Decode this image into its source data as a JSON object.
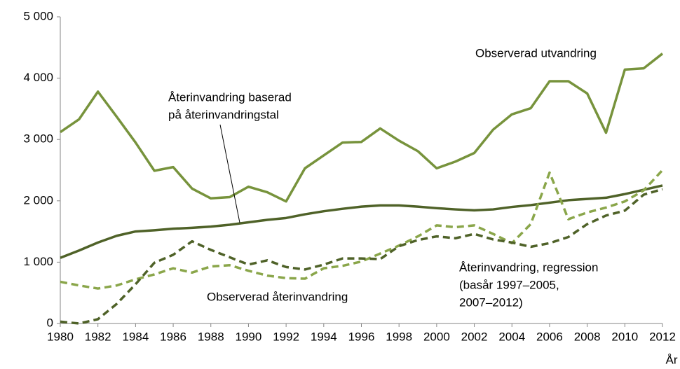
{
  "chart_data": {
    "type": "line",
    "x_label": "År",
    "x": [
      1980,
      1981,
      1982,
      1983,
      1984,
      1985,
      1986,
      1987,
      1988,
      1989,
      1990,
      1991,
      1992,
      1993,
      1994,
      1995,
      1996,
      1997,
      1998,
      1999,
      2000,
      2001,
      2002,
      2003,
      2004,
      2005,
      2006,
      2007,
      2008,
      2009,
      2010,
      2011,
      2012
    ],
    "xlim": [
      1980,
      2012
    ],
    "xticks": [
      1980,
      1982,
      1984,
      1986,
      1988,
      1990,
      1992,
      1994,
      1996,
      1998,
      2000,
      2002,
      2004,
      2006,
      2008,
      2010,
      2012
    ],
    "ylim": [
      0,
      5000
    ],
    "yticks": [
      0,
      {
        "value": 1000,
        "label": "1 000"
      },
      {
        "value": 2000,
        "label": "2 000"
      },
      {
        "value": 3000,
        "label": "3 000"
      },
      {
        "value": 4000,
        "label": "4 000"
      },
      {
        "value": 5000,
        "label": "5 000"
      }
    ],
    "grid": false,
    "series": [
      {
        "name": [
          "Observerad utvandring"
        ],
        "color": "#77933c",
        "dashed": false,
        "values": [
          3120,
          3330,
          3780,
          3370,
          2950,
          2490,
          2550,
          2200,
          2040,
          2060,
          2230,
          2140,
          1990,
          2530,
          2740,
          2950,
          2960,
          3180,
          2980,
          2810,
          2530,
          2640,
          2780,
          3160,
          3410,
          3510,
          3950,
          3950,
          3750,
          3110,
          4140,
          4160,
          4400
        ]
      },
      {
        "name": [
          "Återinvandring baserad",
          "på återinvandringstal"
        ],
        "color": "#4f6228",
        "dashed": false,
        "values": [
          1070,
          1190,
          1320,
          1430,
          1500,
          1520,
          1545,
          1560,
          1580,
          1610,
          1650,
          1690,
          1720,
          1780,
          1830,
          1870,
          1905,
          1925,
          1925,
          1905,
          1880,
          1860,
          1845,
          1860,
          1900,
          1930,
          1970,
          2010,
          2030,
          2050,
          2110,
          2180,
          2250
        ]
      },
      {
        "name": [
          "Observerad återinvandring"
        ],
        "color": "#8aa64a",
        "dashed": true,
        "values": [
          680,
          620,
          570,
          620,
          720,
          800,
          900,
          830,
          930,
          950,
          860,
          780,
          740,
          730,
          900,
          940,
          1010,
          1140,
          1270,
          1420,
          1600,
          1570,
          1600,
          1460,
          1310,
          1620,
          2460,
          1700,
          1810,
          1890,
          1990,
          2170,
          2500
        ]
      },
      {
        "name": [
          "Återinvandring, regression",
          "(basår 1997–2005,",
          "2007–2012)"
        ],
        "color": "#4f6228",
        "dashed": true,
        "values": [
          30,
          0,
          70,
          320,
          640,
          990,
          1120,
          1340,
          1200,
          1080,
          960,
          1030,
          920,
          880,
          960,
          1060,
          1060,
          1050,
          1260,
          1360,
          1420,
          1390,
          1460,
          1370,
          1320,
          1250,
          1310,
          1410,
          1620,
          1760,
          1840,
          2100,
          2190
        ]
      }
    ]
  }
}
